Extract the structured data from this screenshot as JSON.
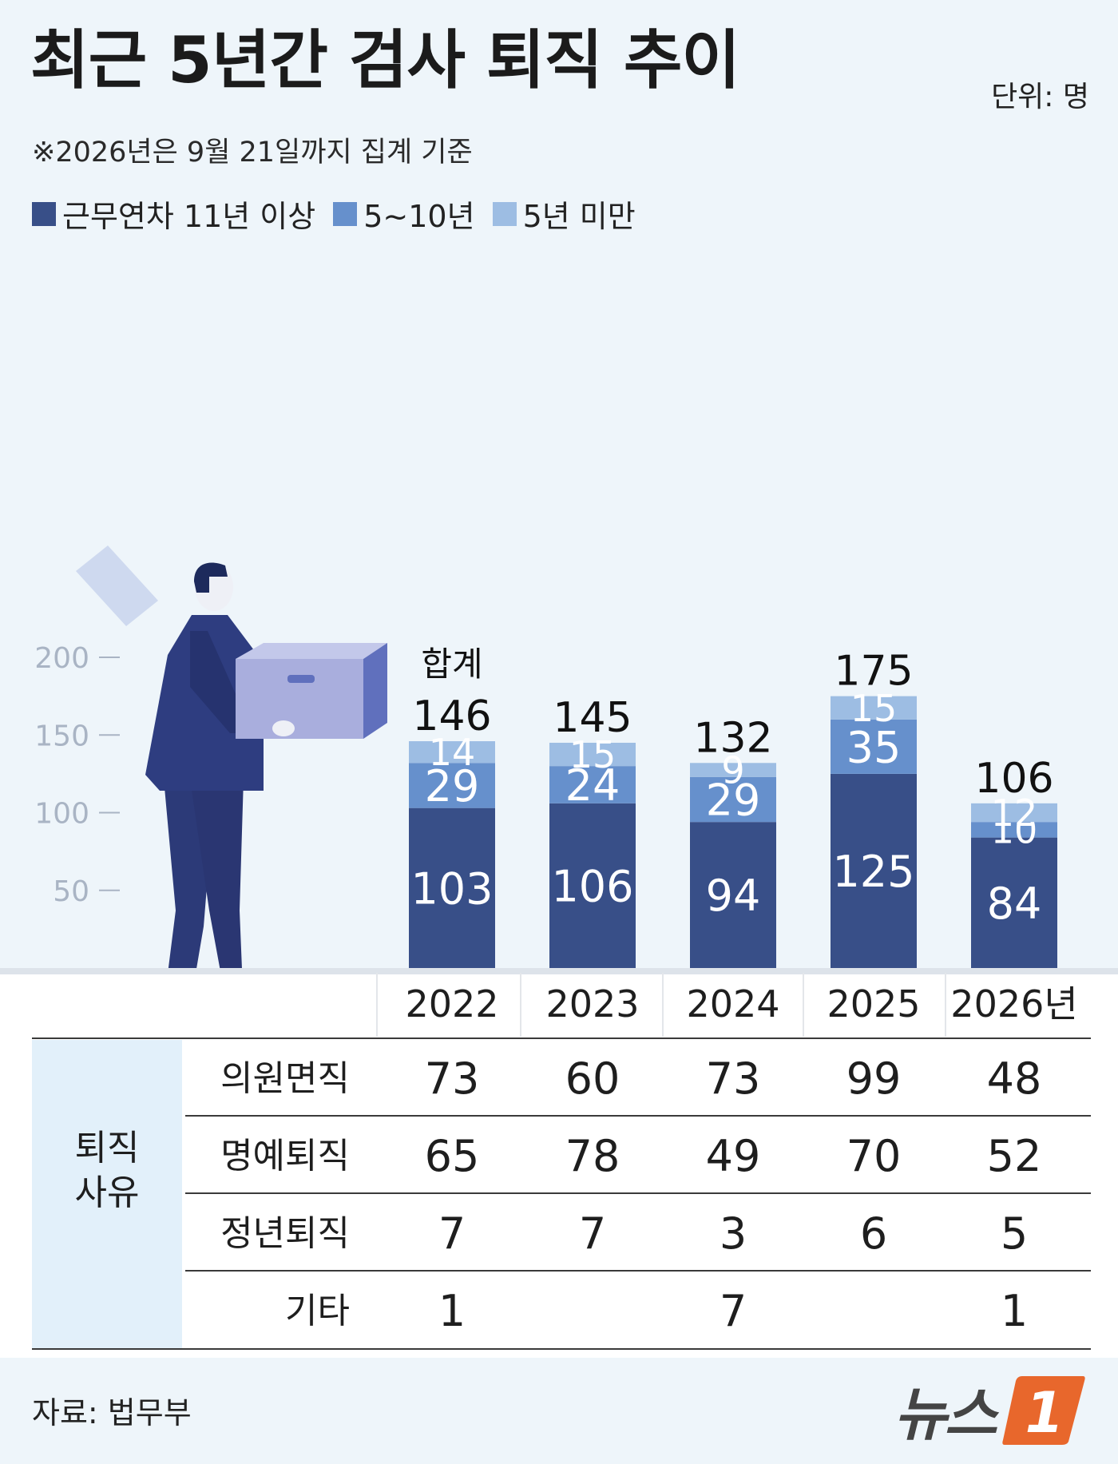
{
  "header": {
    "title": "최근 5년간 검사 퇴직 추이",
    "unit": "단위: 명",
    "note": "※2026년은 9월 21일까지 집계 기준"
  },
  "colors": {
    "dark": "#384f88",
    "mid": "#6690cc",
    "light": "#9dbde3",
    "background": "#eef5fa",
    "table_label_bg": "#e2f0fa",
    "logo_accent": "#e8672c"
  },
  "chart_data": {
    "type": "bar",
    "stacked": true,
    "categories": [
      "2022",
      "2023",
      "2024",
      "2025",
      "2026년"
    ],
    "series": [
      {
        "name": "근무연차 11년 이상",
        "values": [
          103,
          106,
          94,
          125,
          84
        ],
        "color": "#384f88"
      },
      {
        "name": "5~10년",
        "values": [
          29,
          24,
          29,
          35,
          10
        ],
        "color": "#6690cc"
      },
      {
        "name": "5년 미만",
        "values": [
          14,
          15,
          9,
          15,
          12
        ],
        "color": "#9dbde3"
      }
    ],
    "totals": [
      146,
      145,
      132,
      175,
      106
    ],
    "total_label": "합계",
    "y_ticks": [
      50,
      100,
      150,
      200
    ],
    "ylim": [
      0,
      200
    ],
    "legend_position": "top-left"
  },
  "table": {
    "group_label": "퇴직\n사유",
    "rows": [
      {
        "label": "의원면직",
        "values": [
          "73",
          "60",
          "73",
          "99",
          "48"
        ]
      },
      {
        "label": "명예퇴직",
        "values": [
          "65",
          "78",
          "49",
          "70",
          "52"
        ]
      },
      {
        "label": "정년퇴직",
        "values": [
          "7",
          "7",
          "3",
          "6",
          "5"
        ]
      },
      {
        "label": "기타",
        "values": [
          "1",
          "",
          "7",
          "",
          "1"
        ]
      }
    ]
  },
  "footer": {
    "source": "자료: 법무부",
    "logo_text": "뉴스",
    "logo_mark": "1"
  }
}
